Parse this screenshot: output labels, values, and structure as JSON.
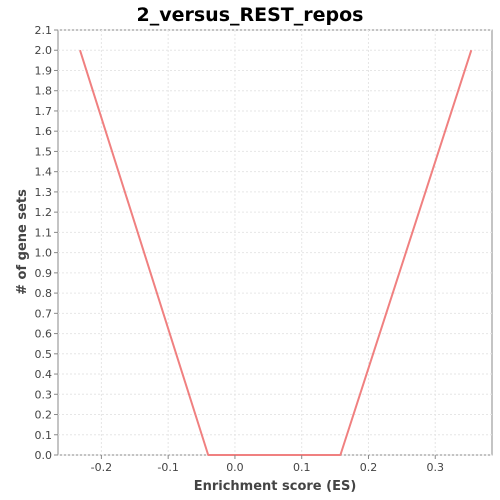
{
  "chart_data": {
    "type": "line",
    "title": "2_versus_REST_repos",
    "xlabel": "Enrichment score (ES)",
    "ylabel": "# of gene sets",
    "xlim": [
      -0.265,
      0.385
    ],
    "ylim": [
      0.0,
      2.1
    ],
    "xticks": [
      -0.2,
      -0.1,
      0.0,
      0.1,
      0.2,
      0.3
    ],
    "xtick_labels": [
      "-0.2",
      "-0.1",
      "0.0",
      "0.1",
      "0.2",
      "0.3"
    ],
    "yticks": [
      0.0,
      0.1,
      0.2,
      0.3,
      0.4,
      0.5,
      0.6,
      0.7,
      0.8,
      0.9,
      1.0,
      1.1,
      1.2,
      1.3,
      1.4,
      1.5,
      1.6,
      1.7,
      1.8,
      1.9,
      2.0,
      2.1
    ],
    "ytick_labels": [
      "0.0",
      "0.1",
      "0.2",
      "0.3",
      "0.4",
      "0.5",
      "0.6",
      "0.7",
      "0.8",
      "0.9",
      "1.0",
      "1.1",
      "1.2",
      "1.3",
      "1.4",
      "1.5",
      "1.6",
      "1.7",
      "1.8",
      "1.9",
      "2.0",
      "2.1"
    ],
    "grid": true,
    "series": [
      {
        "color": "#f08080",
        "x": [
          -0.232,
          -0.04,
          0.158,
          0.354
        ],
        "y": [
          2.0,
          0.0,
          0.0,
          2.0
        ]
      }
    ]
  }
}
